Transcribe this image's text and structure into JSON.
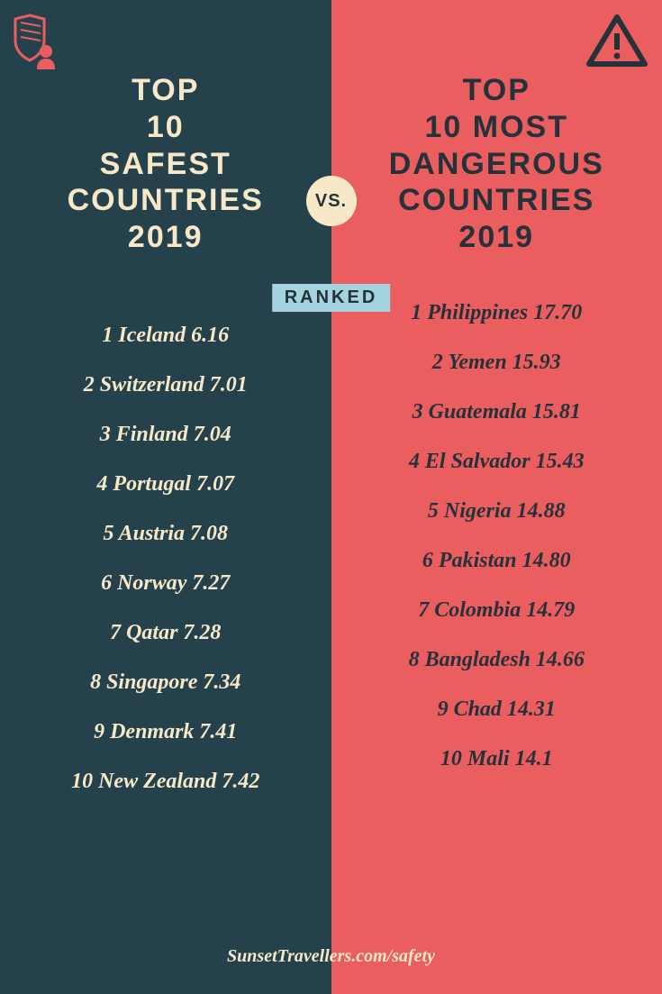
{
  "colors": {
    "left_bg": "#25424c",
    "right_bg": "#ea5e60",
    "cream": "#f7e9c8",
    "dark": "#25323a",
    "badge_blue": "#a6d3e0"
  },
  "left": {
    "title": "TOP\n10\nSAFEST\nCOUNTRIES\n2019",
    "items": [
      {
        "rank": "1",
        "name": "Iceland",
        "score": "6.16"
      },
      {
        "rank": "2",
        "name": "Switzerland",
        "score": "7.01"
      },
      {
        "rank": "3",
        "name": "Finland",
        "score": "7.04"
      },
      {
        "rank": "4",
        "name": "Portugal",
        "score": "7.07"
      },
      {
        "rank": "5",
        "name": "Austria",
        "score": "7.08"
      },
      {
        "rank": "6",
        "name": "Norway",
        "score": "7.27"
      },
      {
        "rank": "7",
        "name": "Qatar",
        "score": "7.28"
      },
      {
        "rank": "8",
        "name": "Singapore",
        "score": "7.34"
      },
      {
        "rank": "9",
        "name": "Denmark",
        "score": "7.41"
      },
      {
        "rank": "10",
        "name": "New Zealand",
        "score": "7.42"
      }
    ]
  },
  "right": {
    "title": "TOP\n10 MOST\nDANGEROUS\nCOUNTRIES\n2019",
    "items": [
      {
        "rank": "1",
        "name": "Philippines",
        "score": "17.70"
      },
      {
        "rank": "2",
        "name": "Yemen",
        "score": "15.93"
      },
      {
        "rank": "3",
        "name": "Guatemala",
        "score": "15.81"
      },
      {
        "rank": "4",
        "name": "El Salvador",
        "score": "15.43"
      },
      {
        "rank": "5",
        "name": "Nigeria",
        "score": "14.88"
      },
      {
        "rank": "6",
        "name": "Pakistan",
        "score": "14.80"
      },
      {
        "rank": "7",
        "name": "Colombia",
        "score": "14.79"
      },
      {
        "rank": "8",
        "name": "Bangladesh",
        "score": "14.66"
      },
      {
        "rank": "9",
        "name": "Chad",
        "score": "14.31"
      },
      {
        "rank": "10",
        "name": "Mali",
        "score": "14.1"
      }
    ]
  },
  "vs_label": "VS.",
  "ranked_label": "RANKED",
  "footer": "SunsetTravellers.com/safety",
  "icons": {
    "left": "shield-person",
    "right": "warning-triangle"
  }
}
